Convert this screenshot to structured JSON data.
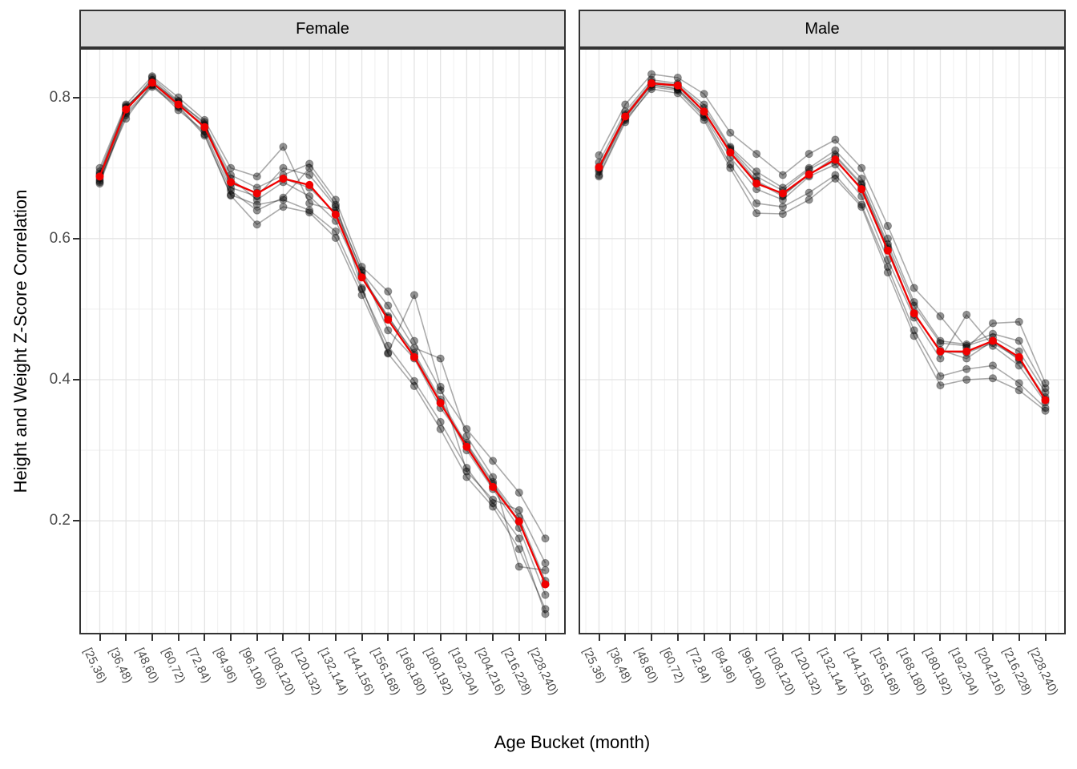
{
  "figure": {
    "y_axis_title": "Height and Weight Z-Score Correlation",
    "x_axis_title": "Age Bucket (month)",
    "y_ticks": [
      {
        "value": 0.8,
        "label": "0.8"
      },
      {
        "value": 0.6,
        "label": "0.6"
      },
      {
        "value": 0.4,
        "label": "0.4"
      },
      {
        "value": 0.2,
        "label": "0.2"
      }
    ],
    "colors": {
      "strip_background": "#dcdcdc",
      "panel_border": "#333333",
      "grid_major": "#e4e4e4",
      "grid_minor": "#f1f1f1",
      "tick_label": "#4d4d4d",
      "mean_line": "#f10000",
      "individual_line": "rgba(0,0,0,0.33)",
      "individual_point": "rgba(0,0,0,0.42)"
    }
  },
  "chart_data": {
    "type": "line",
    "title": "",
    "xlabel": "Age Bucket (month)",
    "ylabel": "Height and Weight Z-Score Correlation",
    "ylim": [
      0.039,
      0.87
    ],
    "y_major_gridlines": [
      0.2,
      0.4,
      0.6,
      0.8
    ],
    "y_minor_gridlines": [
      0.1,
      0.3,
      0.5,
      0.7
    ],
    "grid": true,
    "legend": "none",
    "categories": [
      "[25,36)",
      "[36,48)",
      "[48,60)",
      "[60,72)",
      "[72,84)",
      "[84,96)",
      "[96,108)",
      "[108,120)",
      "[120,132)",
      "[132,144)",
      "[144,156)",
      "[156,168)",
      "[168,180)",
      "[180,192)",
      "[192,204)",
      "[204,216)",
      "[216,228)",
      "[228,240)"
    ],
    "facets": [
      {
        "label": "Female",
        "mean_series": {
          "name": "mean",
          "values": [
            0.688,
            0.783,
            0.821,
            0.79,
            0.758,
            0.68,
            0.664,
            0.685,
            0.676,
            0.634,
            0.545,
            0.485,
            0.432,
            0.367,
            0.305,
            0.248,
            0.199,
            0.11
          ]
        },
        "individual_series": [
          {
            "name": "fold-1",
            "values": [
              0.678,
              0.775,
              0.815,
              0.786,
              0.746,
              0.661,
              0.62,
              0.645,
              0.637,
              0.601,
              0.52,
              0.437,
              0.391,
              0.33,
              0.262,
              0.22,
              0.16,
              0.075
            ]
          },
          {
            "name": "fold-2",
            "values": [
              0.7,
              0.79,
              0.83,
              0.8,
              0.768,
              0.7,
              0.688,
              0.73,
              0.65,
              0.64,
              0.555,
              0.47,
              0.43,
              0.36,
              0.31,
              0.255,
              0.205,
              0.115
            ]
          },
          {
            "name": "fold-3",
            "values": [
              0.682,
              0.78,
              0.828,
              0.795,
              0.762,
              0.69,
              0.672,
              0.69,
              0.706,
              0.655,
              0.56,
              0.525,
              0.455,
              0.385,
              0.33,
              0.285,
              0.24,
              0.175
            ]
          },
          {
            "name": "fold-4",
            "values": [
              0.695,
              0.788,
              0.818,
              0.782,
              0.752,
              0.668,
              0.64,
              0.658,
              0.7,
              0.648,
              0.53,
              0.438,
              0.52,
              0.39,
              0.27,
              0.23,
              0.215,
              0.14
            ]
          },
          {
            "name": "fold-5",
            "values": [
              0.685,
              0.77,
              0.82,
              0.79,
              0.76,
              0.685,
              0.655,
              0.68,
              0.66,
              0.625,
              0.545,
              0.49,
              0.435,
              0.368,
              0.3,
              0.245,
              0.19,
              0.095
            ]
          },
          {
            "name": "fold-6",
            "values": [
              0.69,
              0.785,
              0.825,
              0.792,
              0.765,
              0.672,
              0.66,
              0.7,
              0.69,
              0.645,
              0.552,
              0.505,
              0.445,
              0.43,
              0.32,
              0.262,
              0.135,
              0.13
            ]
          },
          {
            "name": "fold-7",
            "values": [
              0.68,
              0.778,
              0.817,
              0.788,
              0.748,
              0.662,
              0.648,
              0.655,
              0.64,
              0.61,
              0.528,
              0.448,
              0.398,
              0.34,
              0.275,
              0.225,
              0.175,
              0.068
            ]
          },
          {
            "name": "fold-8",
            "values": [
              0.692,
              0.786,
              0.822,
              0.794,
              0.756,
              0.678,
              0.665,
              0.685,
              0.672,
              0.636,
              0.548,
              0.488,
              0.438,
              0.372,
              0.308,
              0.252,
              0.2,
              0.11
            ]
          }
        ]
      },
      {
        "label": "Male",
        "mean_series": {
          "name": "mean",
          "values": [
            0.701,
            0.773,
            0.82,
            0.817,
            0.78,
            0.722,
            0.678,
            0.664,
            0.691,
            0.712,
            0.67,
            0.583,
            0.494,
            0.44,
            0.44,
            0.455,
            0.432,
            0.371
          ]
        },
        "individual_series": [
          {
            "name": "fold-1",
            "values": [
              0.69,
              0.768,
              0.812,
              0.806,
              0.768,
              0.7,
              0.636,
              0.635,
              0.655,
              0.685,
              0.645,
              0.552,
              0.462,
              0.392,
              0.4,
              0.402,
              0.385,
              0.356
            ]
          },
          {
            "name": "fold-2",
            "values": [
              0.718,
              0.79,
              0.833,
              0.828,
              0.805,
              0.75,
              0.72,
              0.69,
              0.72,
              0.74,
              0.7,
              0.618,
              0.53,
              0.49,
              0.445,
              0.48,
              0.482,
              0.395
            ]
          },
          {
            "name": "fold-3",
            "values": [
              0.695,
              0.772,
              0.818,
              0.812,
              0.775,
              0.715,
              0.67,
              0.655,
              0.688,
              0.705,
              0.66,
              0.57,
              0.488,
              0.43,
              0.492,
              0.448,
              0.42,
              0.368
            ]
          },
          {
            "name": "fold-4",
            "values": [
              0.708,
              0.78,
              0.825,
              0.82,
              0.79,
              0.73,
              0.695,
              0.672,
              0.7,
              0.725,
              0.685,
              0.6,
              0.51,
              0.455,
              0.45,
              0.465,
              0.455,
              0.388
            ]
          },
          {
            "name": "fold-5",
            "values": [
              0.688,
              0.765,
              0.815,
              0.81,
              0.772,
              0.705,
              0.65,
              0.645,
              0.665,
              0.69,
              0.648,
              0.56,
              0.47,
              0.405,
              0.415,
              0.42,
              0.395,
              0.36
            ]
          },
          {
            "name": "fold-6",
            "values": [
              0.702,
              0.776,
              0.822,
              0.818,
              0.785,
              0.728,
              0.688,
              0.668,
              0.698,
              0.718,
              0.678,
              0.592,
              0.505,
              0.452,
              0.448,
              0.46,
              0.44,
              0.382
            ]
          },
          {
            "name": "fold-7",
            "values": [
              0.7,
              0.774,
              0.82,
              0.815,
              0.78,
              0.722,
              0.68,
              0.66,
              0.692,
              0.71,
              0.672,
              0.585,
              0.495,
              0.44,
              0.438,
              0.452,
              0.43,
              0.375
            ]
          },
          {
            "name": "fold-8",
            "values": [
              0.698,
              0.77,
              0.818,
              0.812,
              0.776,
              0.726,
              0.682,
              0.662,
              0.69,
              0.716,
              0.676,
              0.588,
              0.492,
              0.442,
              0.43,
              0.455,
              0.428,
              0.372
            ]
          }
        ]
      }
    ]
  }
}
